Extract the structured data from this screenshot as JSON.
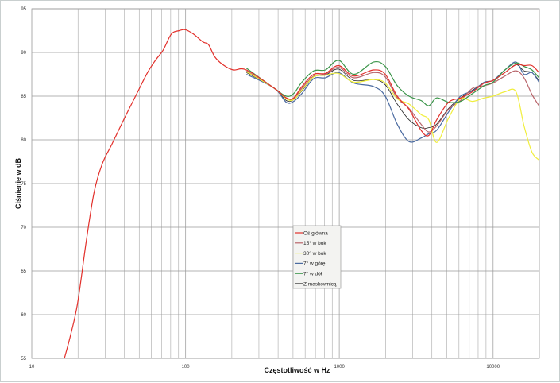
{
  "chart_data": {
    "type": "line",
    "title": "",
    "xlabel": "Częstotliwość w Hz",
    "ylabel": "Ciśnienie w dB",
    "x_scale": "log",
    "xlim": [
      10,
      20000
    ],
    "ylim": [
      55,
      95
    ],
    "x_ticks": [
      "10",
      "100",
      "1000",
      "10000"
    ],
    "y_ticks": [
      "55",
      "60",
      "65",
      "70",
      "75",
      "80",
      "85",
      "90",
      "95"
    ],
    "grid": true,
    "legend_position": "center",
    "series": [
      {
        "name": "Oś główna",
        "color": "#e2302b",
        "x": [
          16.3,
          17.9,
          19.9,
          22.7,
          25.5,
          28.8,
          33.2,
          39.6,
          47.3,
          56.6,
          63.7,
          71.7,
          80.8,
          91,
          100,
          112.7,
          129.8,
          141,
          155,
          175,
          204,
          249,
          378,
          452,
          505,
          571,
          682,
          812,
          990,
          1240,
          1670,
          1990,
          2380,
          2840,
          3400,
          3820,
          4300,
          5140,
          6150,
          7350,
          8770,
          10000,
          11950,
          14100,
          15900,
          17900,
          19900
        ],
        "y": [
          55,
          57.7,
          61.4,
          68.6,
          74.1,
          77.3,
          79.5,
          82.3,
          85,
          87.7,
          89.1,
          90.3,
          92.1,
          92.5,
          92.6,
          92.1,
          91.2,
          90.9,
          89.5,
          88.6,
          88,
          88.0,
          85.9,
          84.8,
          84.8,
          86.1,
          87.5,
          87.6,
          88.5,
          87.3,
          88.0,
          87.5,
          85.0,
          83.5,
          81.1,
          80.5,
          82.3,
          84.3,
          84.8,
          85.5,
          86.5,
          86.8,
          87.7,
          88.6,
          88.5,
          88.5,
          87.7
        ]
      },
      {
        "name": "15° w bok",
        "color": "#b8646a",
        "x": [
          249,
          378,
          452,
          505,
          571,
          682,
          812,
          990,
          1240,
          1670,
          1990,
          2380,
          2840,
          3400,
          3820,
          4300,
          5140,
          6150,
          7350,
          8770,
          10000,
          11950,
          14100,
          15900,
          17900,
          19900
        ],
        "y": [
          87.9,
          85.9,
          84.8,
          84.7,
          85.9,
          87.3,
          87.5,
          88.3,
          87.1,
          87.7,
          87.2,
          84.8,
          83.6,
          81.8,
          80.9,
          81.6,
          83.5,
          84.5,
          85.9,
          86.2,
          86.5,
          87.3,
          87.9,
          87.1,
          85.2,
          83.9
        ]
      },
      {
        "name": "30° w bok",
        "color": "#f0ee3c",
        "x": [
          249,
          378,
          452,
          505,
          571,
          682,
          812,
          990,
          1240,
          1670,
          1990,
          2380,
          2840,
          3400,
          3820,
          4300,
          5140,
          6150,
          7350,
          8770,
          10000,
          11950,
          14100,
          15900,
          17900,
          19900
        ],
        "y": [
          87.8,
          85.9,
          84.7,
          84.6,
          85.7,
          87.2,
          87.4,
          87.6,
          86.6,
          86.9,
          86.5,
          84.7,
          84.1,
          82.9,
          82.3,
          79.7,
          82.5,
          84.7,
          84.4,
          84.8,
          85.0,
          85.5,
          85.5,
          81.6,
          78.6,
          77.7
        ]
      },
      {
        "name": "7° w górę",
        "color": "#4a6aa0",
        "x": [
          249,
          378,
          452,
          505,
          571,
          682,
          812,
          990,
          1240,
          1670,
          1990,
          2380,
          2840,
          3400,
          3820,
          4300,
          5140,
          6150,
          7350,
          8770,
          10000,
          11950,
          14100,
          15900,
          17900,
          19900
        ],
        "y": [
          87.5,
          85.9,
          84.3,
          84.4,
          85.3,
          87.0,
          87.1,
          87.7,
          86.5,
          86.1,
          85.0,
          81.8,
          79.8,
          80.2,
          80.7,
          81.1,
          83.2,
          85.0,
          85.6,
          86.6,
          86.8,
          88.0,
          88.9,
          87.5,
          87.7,
          86.6
        ]
      },
      {
        "name": "7° w dół",
        "color": "#3a9448",
        "x": [
          249,
          378,
          452,
          505,
          571,
          682,
          812,
          990,
          1240,
          1670,
          1990,
          2380,
          2840,
          3400,
          3820,
          4300,
          5140,
          6150,
          7350,
          8770,
          10000,
          11950,
          14100,
          15900,
          17900,
          19900
        ],
        "y": [
          88.2,
          85.9,
          85.0,
          85.3,
          86.6,
          87.9,
          88.0,
          89.1,
          87.5,
          88.9,
          88.4,
          86.2,
          85.0,
          84.5,
          83.9,
          84.8,
          84.3,
          84.4,
          85.3,
          86.2,
          86.6,
          88.0,
          88.8,
          88.4,
          88.0,
          87.1
        ]
      },
      {
        "name": "Z maskownicą",
        "color": "#222222",
        "x": [
          249,
          378,
          452,
          505,
          571,
          682,
          812,
          990,
          1240,
          1670,
          1990,
          2380,
          2840,
          3400,
          3820,
          4300,
          5140,
          6150,
          7350,
          8770,
          10000,
          11950,
          14100,
          15900,
          17900,
          19900
        ],
        "y": [
          87.7,
          85.9,
          84.5,
          84.6,
          85.6,
          87.2,
          87.4,
          88.1,
          86.8,
          86.9,
          86.3,
          84.1,
          82.3,
          81.4,
          81.4,
          81.8,
          83.6,
          84.8,
          85.7,
          86.5,
          86.8,
          87.7,
          88.6,
          87.9,
          87.7,
          86.8
        ]
      }
    ]
  }
}
